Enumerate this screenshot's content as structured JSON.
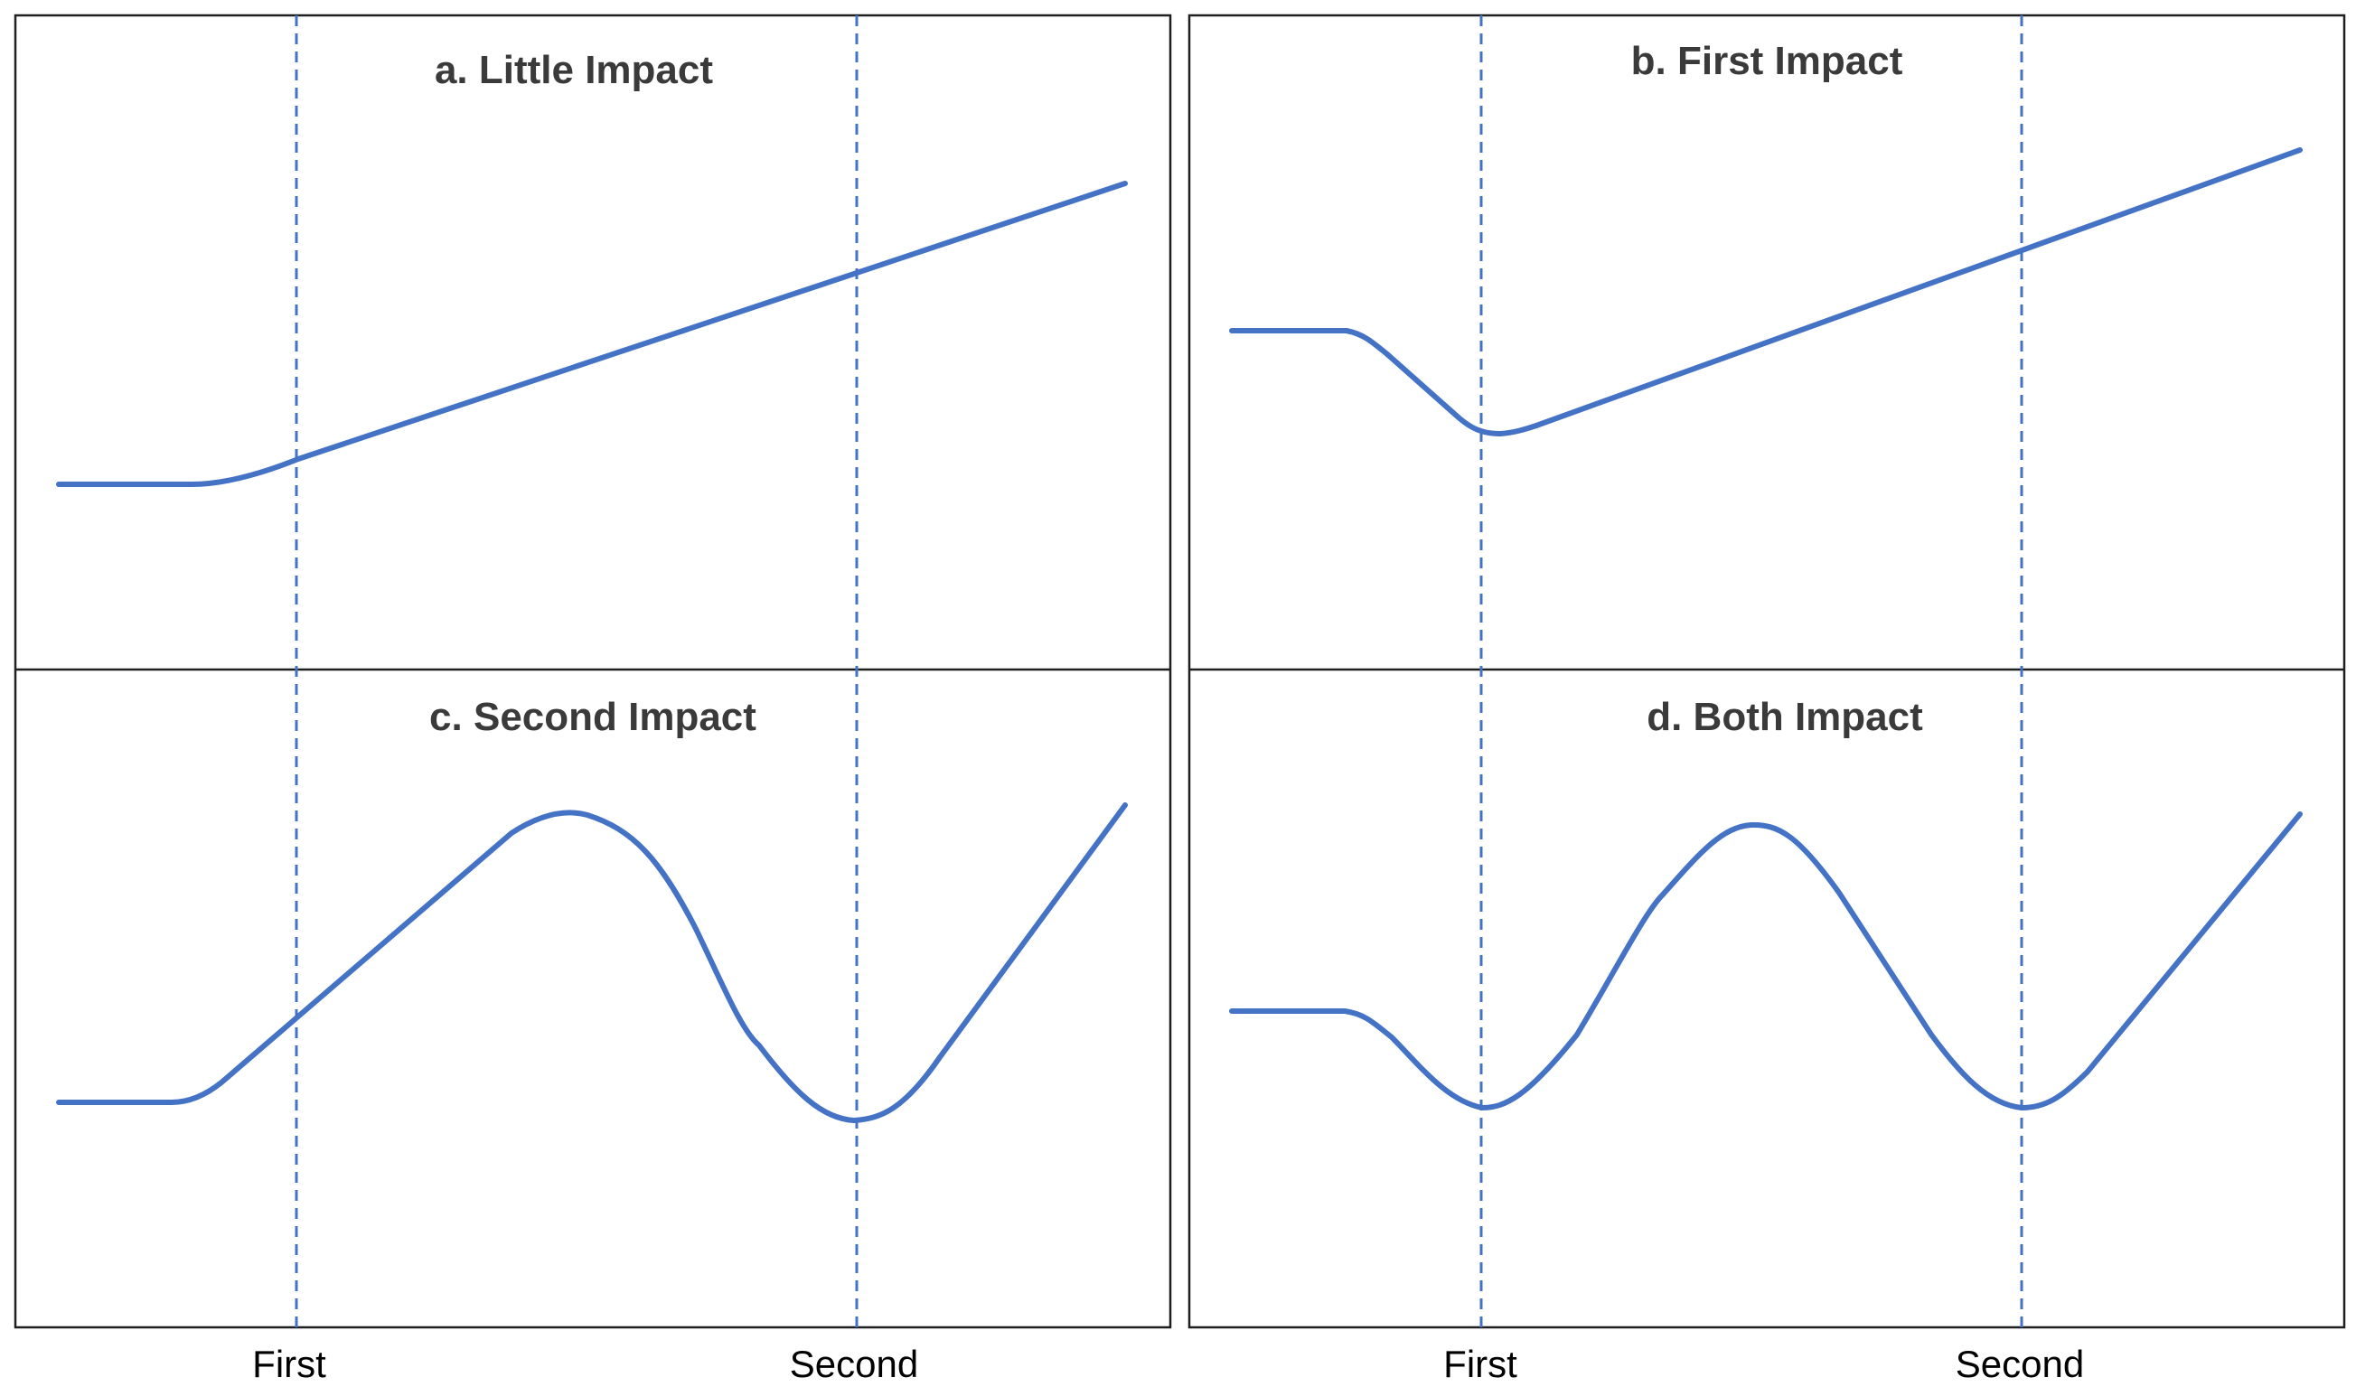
{
  "line_color": "#4472c4",
  "panels": [
    {
      "id": "a",
      "title": "a. Little Impact",
      "shape": "rise-from-flat"
    },
    {
      "id": "b",
      "title": "b. First Impact",
      "shape": "dip-at-first-then-rise"
    },
    {
      "id": "c",
      "title": "c. Second Impact",
      "shape": "rise-peak-dip-at-second-then-rise"
    },
    {
      "id": "d",
      "title": "d. Both Impact",
      "shape": "dip-at-first-peak-dip-at-second-then-rise"
    }
  ],
  "x_labels": {
    "left": [
      "First",
      "Second"
    ],
    "right": [
      "First",
      "Second"
    ]
  }
}
